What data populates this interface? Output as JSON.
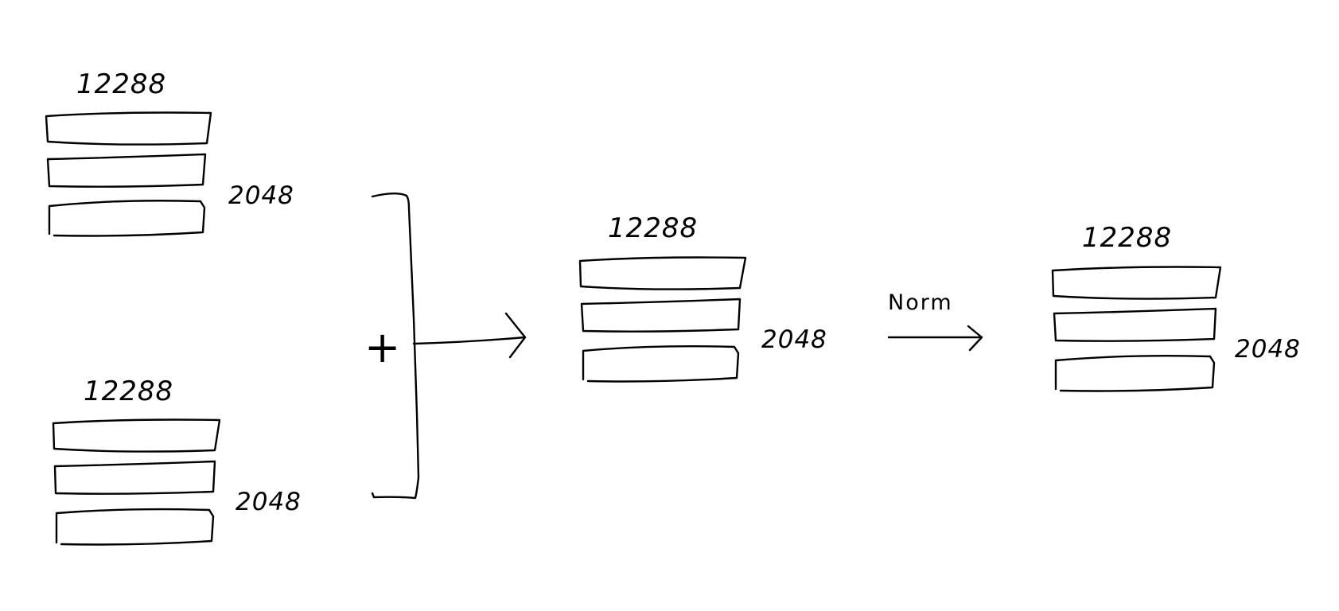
{
  "diagram": {
    "tensor_input_a": {
      "width_label": "12288",
      "rows_label": "2048"
    },
    "tensor_input_b": {
      "width_label": "12288",
      "rows_label": "2048"
    },
    "combine_symbol": "+",
    "tensor_sum": {
      "width_label": "12288",
      "rows_label": "2048"
    },
    "norm_arrow": {
      "label": "Norm"
    },
    "tensor_output": {
      "width_label": "12288",
      "rows_label": "2048"
    },
    "ink_color": "#000000",
    "background_color": "#ffffff"
  }
}
